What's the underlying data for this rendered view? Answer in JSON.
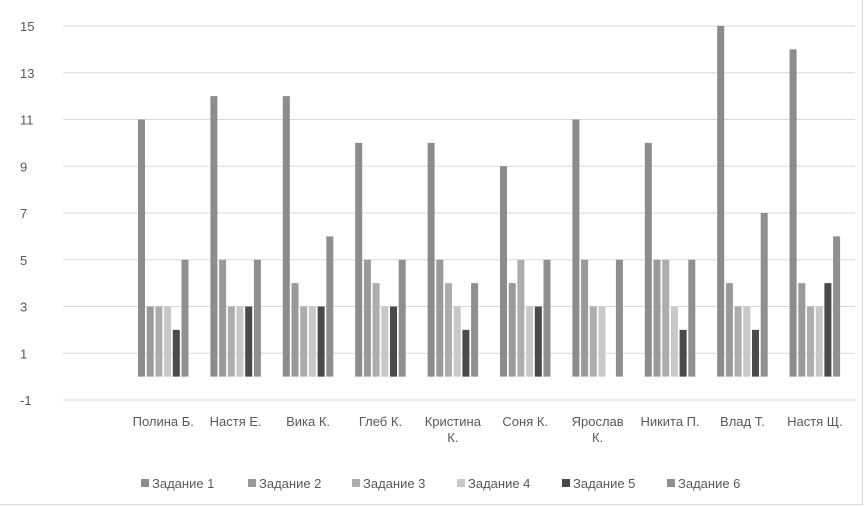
{
  "chart_data": {
    "type": "bar",
    "title": "",
    "xlabel": "",
    "ylabel": "",
    "ylim": [
      -1,
      15
    ],
    "yticks": [
      "-1",
      "1",
      "3",
      "5",
      "7",
      "9",
      "11",
      "13",
      "15"
    ],
    "grid": "horizontal",
    "legend_position": "bottom",
    "categories": [
      [
        "Полина Б."
      ],
      [
        "Настя Е."
      ],
      [
        "Вика К."
      ],
      [
        "Глеб К."
      ],
      [
        "Кристина",
        "К."
      ],
      [
        "Соня К."
      ],
      [
        "Ярослав",
        "К."
      ],
      [
        "Никита П."
      ],
      [
        "Влад Т."
      ],
      [
        "Настя Щ."
      ]
    ],
    "series": [
      {
        "name": "Задание 1",
        "color": "#8c8c8c",
        "values": [
          11,
          12,
          12,
          10,
          10,
          9,
          11,
          10,
          15,
          14
        ]
      },
      {
        "name": "Задание 2",
        "color": "#9a9a9a",
        "values": [
          3,
          5,
          4,
          5,
          5,
          4,
          5,
          5,
          4,
          4
        ]
      },
      {
        "name": "Задание 3",
        "color": "#adadad",
        "values": [
          3,
          3,
          3,
          4,
          4,
          5,
          3,
          5,
          3,
          3
        ]
      },
      {
        "name": "Задание 4",
        "color": "#c8c8c8",
        "values": [
          3,
          3,
          3,
          3,
          3,
          3,
          3,
          3,
          3,
          3
        ]
      },
      {
        "name": "Задание 5",
        "color": "#4a4a4a",
        "values": [
          2,
          3,
          3,
          3,
          2,
          3,
          0,
          2,
          2,
          4
        ]
      },
      {
        "name": "Задание 6",
        "color": "#8f8f8f",
        "values": [
          5,
          5,
          6,
          5,
          4,
          5,
          5,
          5,
          7,
          6
        ]
      }
    ]
  }
}
